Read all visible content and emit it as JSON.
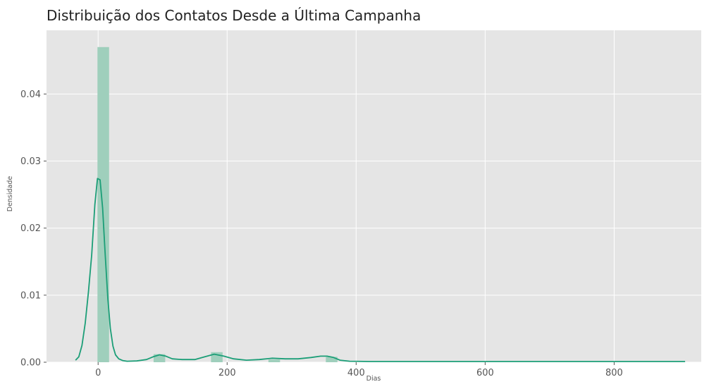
{
  "chart_data": {
    "type": "bar",
    "title": "Distribuição dos Contatos Desde a Última Campanha",
    "xlabel": "Dias",
    "ylabel": "Densidade",
    "xlim": [
      -80,
      935
    ],
    "ylim": [
      0,
      0.0495
    ],
    "x_ticks": [
      0,
      200,
      400,
      600,
      800
    ],
    "x_tick_labels": [
      "0",
      "200",
      "400",
      "600",
      "800"
    ],
    "y_ticks": [
      0,
      0.01,
      0.02,
      0.03,
      0.04
    ],
    "y_tick_labels": [
      "0.00",
      "0.01",
      "0.02",
      "0.03",
      "0.04"
    ],
    "grid": true,
    "colors": {
      "background": "#e5e5e5",
      "grid": "#ffffff",
      "bars": "#9fcfbc",
      "line": "#1b9e77"
    },
    "histogram": {
      "bins": [
        {
          "x0": -1,
          "x1": 17,
          "density": 0.047
        },
        {
          "x0": 86,
          "x1": 104,
          "density": 0.0012
        },
        {
          "x0": 175,
          "x1": 193,
          "density": 0.0015
        },
        {
          "x0": 264,
          "x1": 282,
          "density": 0.0004
        },
        {
          "x0": 353,
          "x1": 371,
          "density": 0.0008
        }
      ]
    },
    "series": [
      {
        "type": "kde",
        "x": [
          -35,
          -30,
          -25,
          -20,
          -15,
          -10,
          -5,
          -1,
          3,
          7,
          11,
          15,
          19,
          23,
          27,
          32,
          38,
          45,
          60,
          75,
          85,
          95,
          105,
          115,
          130,
          150,
          165,
          180,
          195,
          210,
          230,
          250,
          270,
          290,
          310,
          330,
          345,
          355,
          365,
          375,
          390,
          420,
          500,
          600,
          700,
          800,
          910
        ],
        "y": [
          0.0003,
          0.0008,
          0.0025,
          0.0058,
          0.0105,
          0.016,
          0.0235,
          0.0274,
          0.0272,
          0.023,
          0.016,
          0.0095,
          0.005,
          0.0024,
          0.0011,
          0.0005,
          0.00025,
          0.00015,
          0.0002,
          0.0004,
          0.0008,
          0.0011,
          0.0009,
          0.0005,
          0.0004,
          0.0004,
          0.0008,
          0.0012,
          0.0009,
          0.0005,
          0.0003,
          0.0004,
          0.0006,
          0.0005,
          0.0005,
          0.0007,
          0.0009,
          0.0009,
          0.0007,
          0.0003,
          0.00015,
          0.0001,
          0.0001,
          0.0001,
          0.0001,
          0.0001,
          0.0001
        ]
      }
    ]
  }
}
